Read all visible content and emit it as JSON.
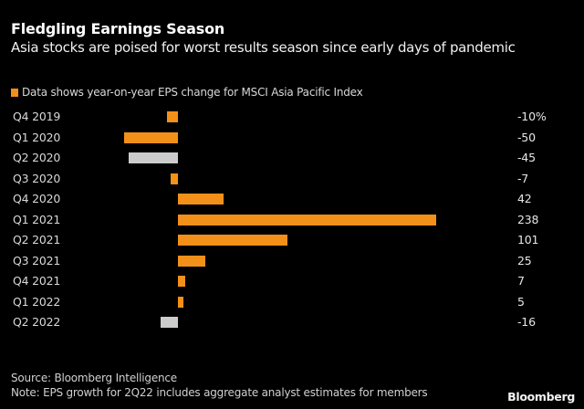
{
  "header": {
    "title": "Fledgling Earnings Season",
    "subtitle": "Asia stocks are poised for worst results season since early days of pandemic"
  },
  "legend": {
    "label": "Data shows year-on-year EPS change for MSCI Asia Pacific Index",
    "color": "#f39019"
  },
  "footer": {
    "source": "Source: Bloomberg Intelligence",
    "note": "Note: EPS growth for 2Q22 includes aggregate analyst estimates for members",
    "brand": "Bloomberg"
  },
  "colors": {
    "background": "#000000",
    "actual": "#f39019",
    "estimate": "#cccccc"
  },
  "chart_data": {
    "type": "bar",
    "orientation": "horizontal",
    "title": "Fledgling Earnings Season",
    "subtitle": "Asia stocks are poised for worst results season since early days of pandemic",
    "xlabel": "",
    "ylabel": "",
    "unit": "%",
    "categories": [
      "Q4 2019",
      "Q1 2020",
      "Q2 2020",
      "Q3 2020",
      "Q4 2020",
      "Q1 2021",
      "Q2 2021",
      "Q3 2021",
      "Q4 2021",
      "Q1 2022",
      "Q2 2022"
    ],
    "values": [
      -10,
      -50,
      -45,
      -7,
      42,
      238,
      101,
      25,
      7,
      5,
      -16
    ],
    "value_labels": [
      "-10%",
      "-50",
      "-45",
      "-7",
      "42",
      "238",
      "101",
      "25",
      "7",
      "5",
      "-16"
    ],
    "bar_colors": [
      "#f39019",
      "#f39019",
      "#cccccc",
      "#f39019",
      "#f39019",
      "#f39019",
      "#f39019",
      "#f39019",
      "#f39019",
      "#f39019",
      "#cccccc"
    ],
    "series": [
      {
        "name": "Data shows year-on-year EPS change for MSCI Asia Pacific Index",
        "values": [
          -10,
          -50,
          -45,
          -7,
          42,
          238,
          101,
          25,
          7,
          5,
          -16
        ]
      }
    ],
    "legend_position": "top",
    "grid": false,
    "xlim": [
      -50,
      238
    ]
  }
}
